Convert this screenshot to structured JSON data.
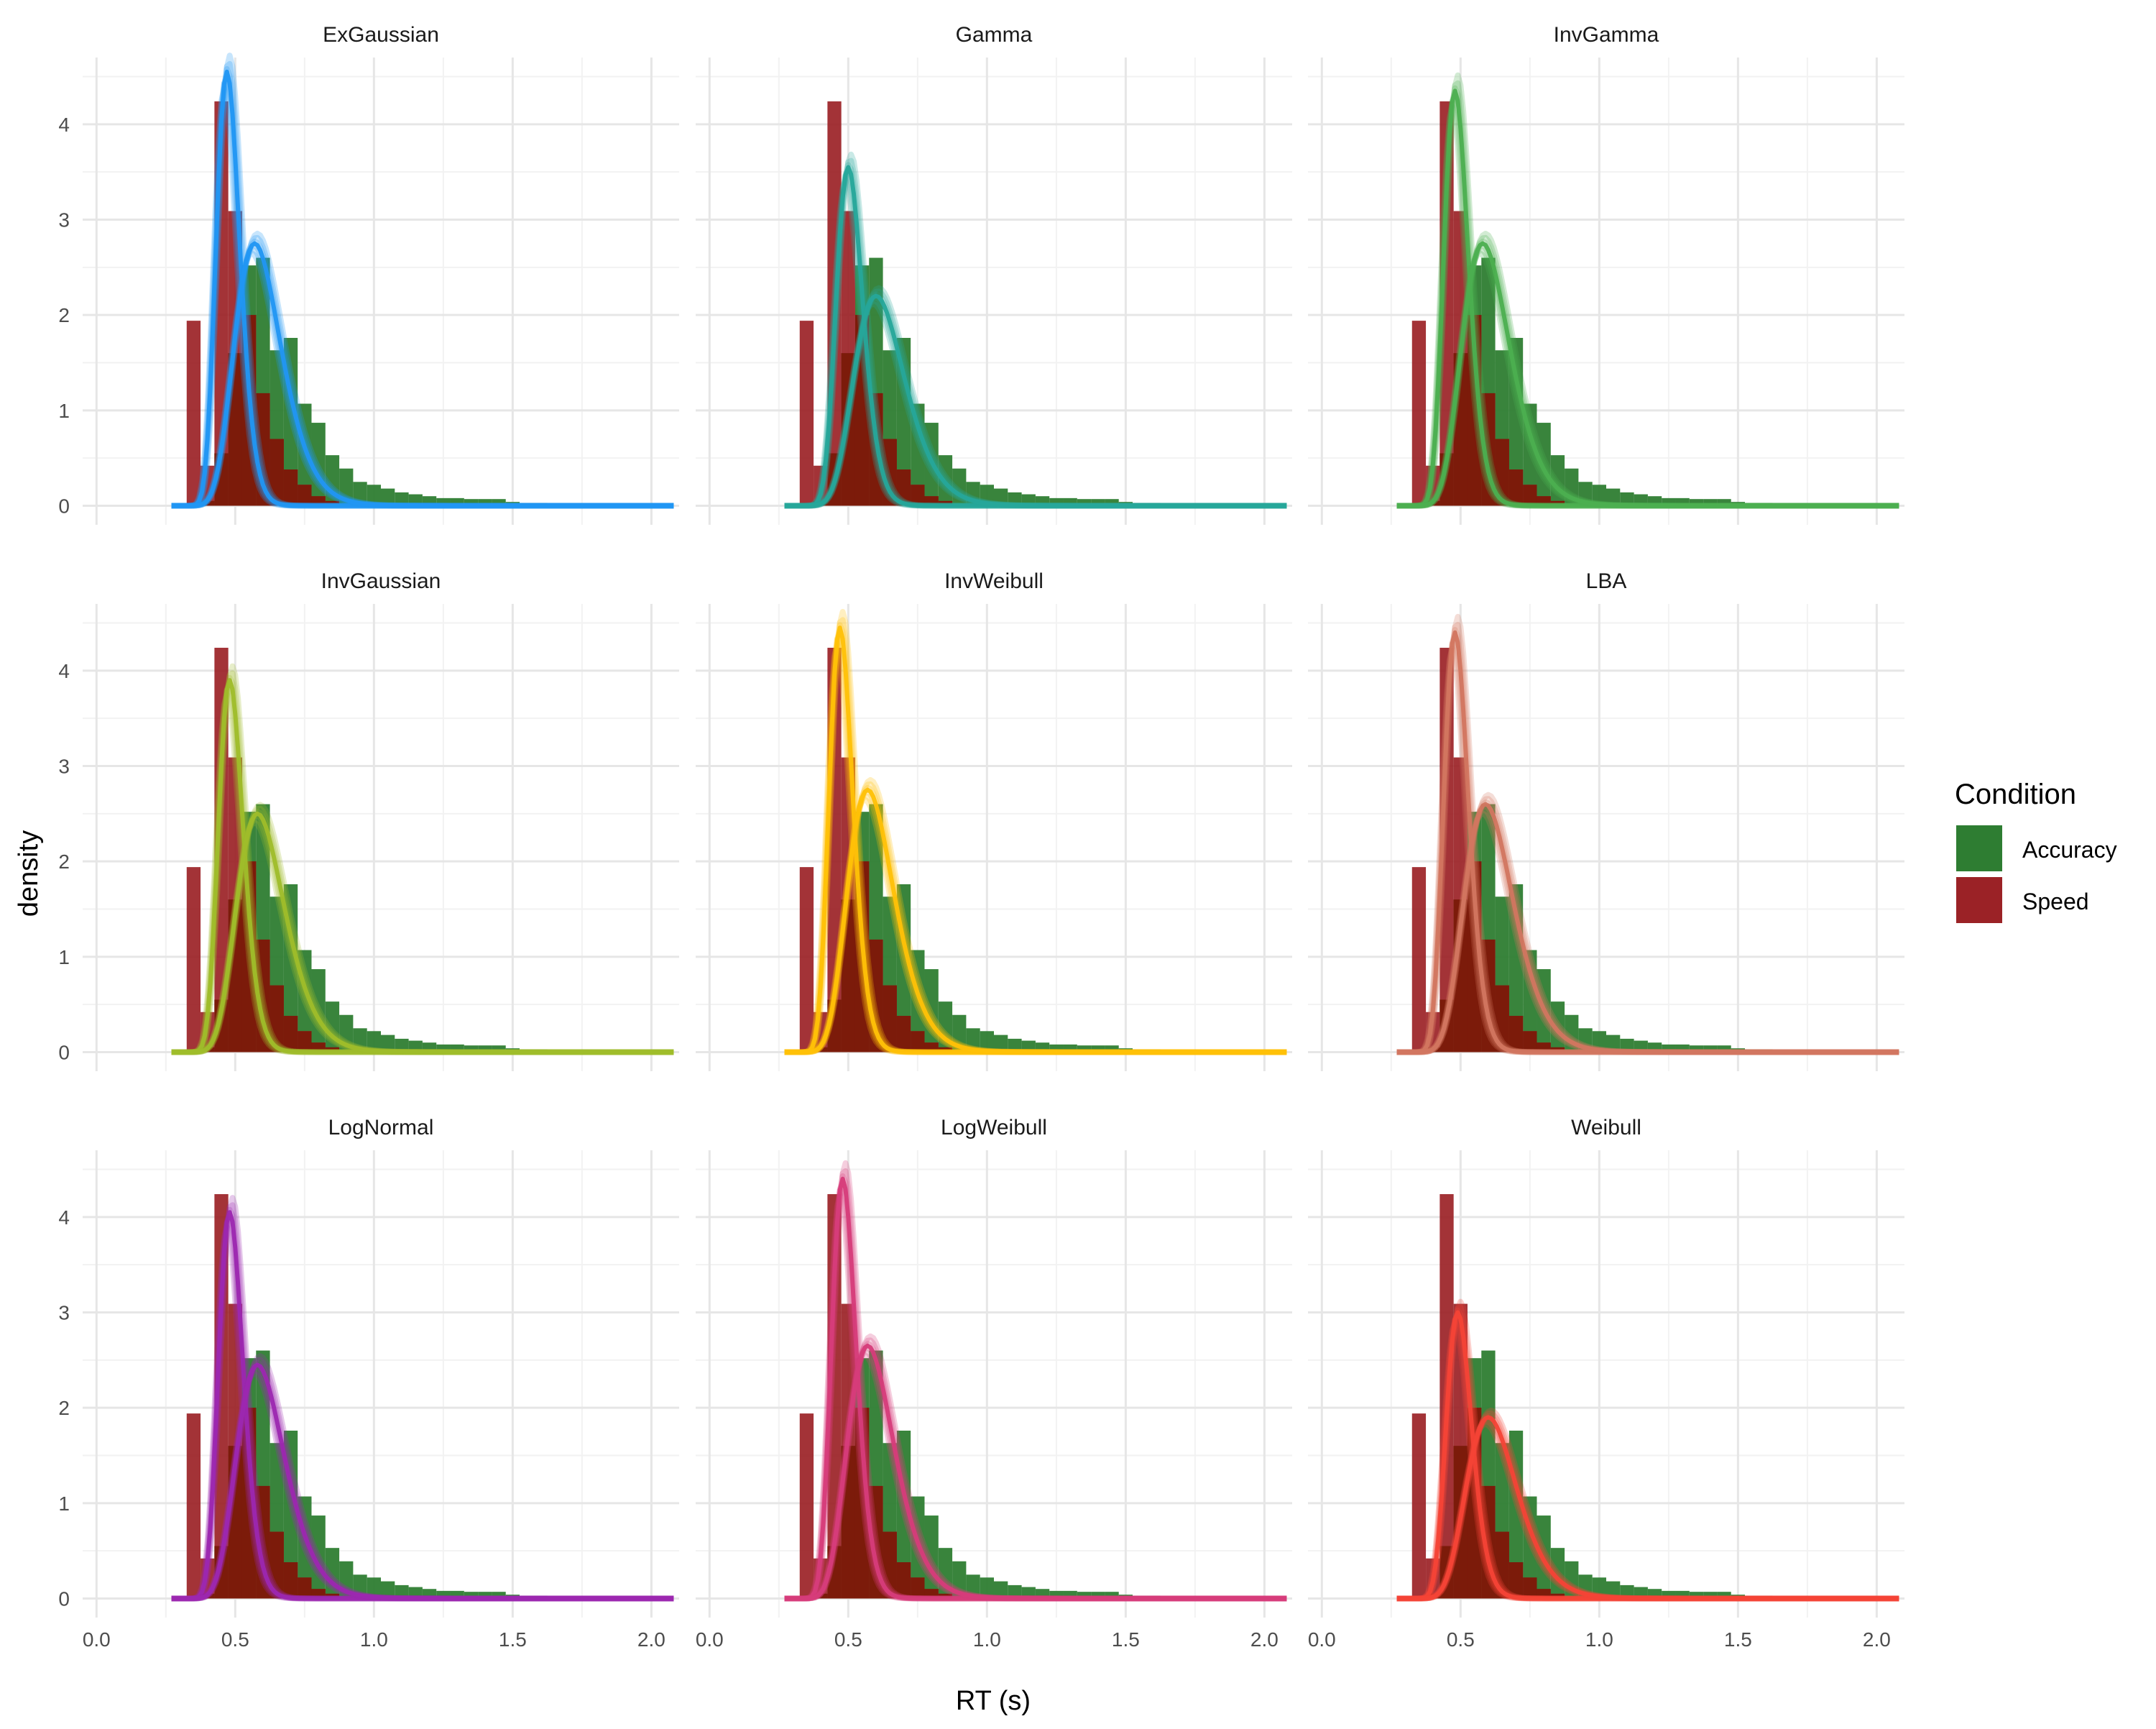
{
  "chart_data": {
    "type": "faceted-histogram-density",
    "xlabel": "RT (s)",
    "ylabel": "density",
    "xlim": [
      -0.05,
      2.1
    ],
    "ylim": [
      -0.2,
      4.7
    ],
    "x_ticks": [
      "0.0",
      "0.5",
      "1.0",
      "1.5",
      "2.0"
    ],
    "x_tick_values": [
      0,
      0.5,
      1.0,
      1.5,
      2.0
    ],
    "y_ticks": [
      "0",
      "1",
      "2",
      "3",
      "4"
    ],
    "y_tick_values": [
      0,
      1,
      2,
      3,
      4
    ],
    "grid": true,
    "legend": {
      "title": "Condition",
      "position": "right",
      "items": [
        {
          "label": "Accuracy",
          "color": "#2e7d32"
        },
        {
          "label": "Speed",
          "color": "#9b2226"
        }
      ]
    },
    "bin_width": 0.05,
    "histogram": {
      "Speed": {
        "x": [
          0.35,
          0.4,
          0.45,
          0.5,
          0.55,
          0.6,
          0.65,
          0.7,
          0.75,
          0.8,
          0.85
        ],
        "density": [
          1.94,
          0.42,
          4.24,
          3.09,
          2.0,
          1.18,
          0.7,
          0.38,
          0.22,
          0.1,
          0.05
        ]
      },
      "Accuracy": {
        "x": [
          0.35,
          0.4,
          0.45,
          0.5,
          0.55,
          0.6,
          0.65,
          0.7,
          0.75,
          0.8,
          0.85,
          0.9,
          0.95,
          1.0,
          1.05,
          1.1,
          1.15,
          1.2,
          1.25,
          1.3,
          1.35,
          1.4,
          1.45,
          1.5,
          1.55,
          1.6,
          1.7,
          1.8,
          1.9
        ],
        "density": [
          0.02,
          0.05,
          0.55,
          1.6,
          2.52,
          2.6,
          1.63,
          1.76,
          1.07,
          0.87,
          0.53,
          0.39,
          0.25,
          0.22,
          0.18,
          0.14,
          0.12,
          0.1,
          0.08,
          0.08,
          0.07,
          0.07,
          0.07,
          0.04,
          0.03,
          0.03,
          0.02,
          0.02,
          0.01
        ]
      }
    },
    "panels": [
      {
        "title": "ExGaussian",
        "color": "#2196f3",
        "curves": [
          {
            "condition": "Speed",
            "peak_x": 0.47,
            "peak_y": 4.55
          },
          {
            "condition": "Accuracy",
            "peak_x": 0.57,
            "peak_y": 2.75
          }
        ]
      },
      {
        "title": "Gamma",
        "color": "#26a69a",
        "curves": [
          {
            "condition": "Speed",
            "peak_x": 0.5,
            "peak_y": 3.55
          },
          {
            "condition": "Accuracy",
            "peak_x": 0.6,
            "peak_y": 2.2
          }
        ]
      },
      {
        "title": "InvGamma",
        "color": "#4caf50",
        "curves": [
          {
            "condition": "Speed",
            "peak_x": 0.48,
            "peak_y": 4.35
          },
          {
            "condition": "Accuracy",
            "peak_x": 0.58,
            "peak_y": 2.75
          }
        ]
      },
      {
        "title": "InvGaussian",
        "color": "#9fbd2a",
        "curves": [
          {
            "condition": "Speed",
            "peak_x": 0.48,
            "peak_y": 3.9
          },
          {
            "condition": "Accuracy",
            "peak_x": 0.58,
            "peak_y": 2.5
          }
        ]
      },
      {
        "title": "InvWeibull",
        "color": "#ffc107",
        "curves": [
          {
            "condition": "Speed",
            "peak_x": 0.47,
            "peak_y": 4.45
          },
          {
            "condition": "Accuracy",
            "peak_x": 0.57,
            "peak_y": 2.75
          }
        ]
      },
      {
        "title": "LBA",
        "color": "#d27660",
        "curves": [
          {
            "condition": "Speed",
            "peak_x": 0.48,
            "peak_y": 4.4
          },
          {
            "condition": "Accuracy",
            "peak_x": 0.59,
            "peak_y": 2.6
          }
        ]
      },
      {
        "title": "LogNormal",
        "color": "#9c27b0",
        "curves": [
          {
            "condition": "Speed",
            "peak_x": 0.48,
            "peak_y": 4.05
          },
          {
            "condition": "Accuracy",
            "peak_x": 0.58,
            "peak_y": 2.45
          }
        ]
      },
      {
        "title": "LogWeibull",
        "color": "#d63c7a",
        "curves": [
          {
            "condition": "Speed",
            "peak_x": 0.48,
            "peak_y": 4.4
          },
          {
            "condition": "Accuracy",
            "peak_x": 0.57,
            "peak_y": 2.65
          }
        ]
      },
      {
        "title": "Weibull",
        "color": "#f44336",
        "curves": [
          {
            "condition": "Speed",
            "peak_x": 0.49,
            "peak_y": 3.0
          },
          {
            "condition": "Accuracy",
            "peak_x": 0.6,
            "peak_y": 1.9
          }
        ]
      }
    ]
  }
}
